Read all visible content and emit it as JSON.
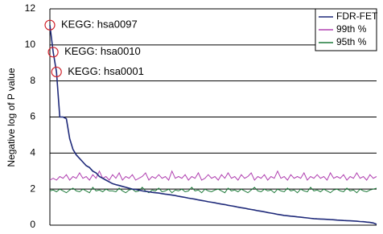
{
  "chart_data": {
    "type": "line",
    "y_label": "Negative log of P value",
    "ylim": [
      0,
      12
    ],
    "yticks": [
      0,
      2,
      4,
      6,
      8,
      10,
      12
    ],
    "grid": true,
    "legend": "top-right",
    "annotations": [
      {
        "text": "KEGG: hsa0097",
        "series": 0,
        "index": 0
      },
      {
        "text": "KEGG: hsa0010",
        "series": 0,
        "index": 1
      },
      {
        "text": "KEGG: hsa0001",
        "series": 0,
        "index": 2
      }
    ],
    "series": [
      {
        "name": "FDR-FET",
        "color": "#1f2a7a",
        "values": [
          11.1,
          9.6,
          8.5,
          6.0,
          6.0,
          5.9,
          4.8,
          4.2,
          3.9,
          3.7,
          3.5,
          3.3,
          3.2,
          3.0,
          2.9,
          2.7,
          2.6,
          2.5,
          2.4,
          2.3,
          2.25,
          2.2,
          2.15,
          2.1,
          2.05,
          2.0,
          1.98,
          1.95,
          1.9,
          1.88,
          1.85,
          1.82,
          1.8,
          1.78,
          1.75,
          1.72,
          1.7,
          1.67,
          1.64,
          1.6,
          1.57,
          1.54,
          1.5,
          1.47,
          1.44,
          1.4,
          1.37,
          1.34,
          1.3,
          1.27,
          1.24,
          1.2,
          1.17,
          1.14,
          1.1,
          1.07,
          1.04,
          1.0,
          0.97,
          0.94,
          0.9,
          0.87,
          0.84,
          0.8,
          0.77,
          0.74,
          0.7,
          0.67,
          0.64,
          0.6,
          0.57,
          0.54,
          0.52,
          0.5,
          0.48,
          0.46,
          0.44,
          0.42,
          0.4,
          0.38,
          0.36,
          0.35,
          0.34,
          0.33,
          0.32,
          0.31,
          0.3,
          0.28,
          0.27,
          0.26,
          0.25,
          0.24,
          0.23,
          0.22,
          0.2,
          0.19,
          0.17,
          0.15,
          0.12,
          0.05
        ]
      },
      {
        "name": "99th %",
        "color": "#b040b0",
        "values": [
          2.5,
          2.6,
          2.5,
          2.7,
          2.6,
          2.8,
          2.5,
          2.7,
          2.6,
          2.9,
          2.6,
          2.7,
          2.5,
          2.8,
          2.6,
          3.0,
          2.6,
          2.7,
          2.5,
          2.8,
          2.6,
          2.9,
          2.5,
          2.7,
          2.6,
          2.8,
          2.5,
          2.6,
          2.7,
          2.9,
          2.5,
          2.7,
          2.6,
          2.8,
          2.6,
          2.7,
          2.5,
          3.0,
          2.6,
          2.7,
          2.6,
          2.8,
          2.5,
          2.7,
          2.6,
          2.9,
          2.5,
          2.6,
          2.8,
          2.6,
          2.7,
          2.5,
          2.8,
          2.6,
          2.9,
          2.6,
          2.7,
          2.5,
          2.8,
          2.6,
          2.7,
          2.9,
          2.5,
          2.7,
          2.6,
          2.8,
          2.5,
          2.7,
          2.6,
          3.0,
          2.6,
          2.7,
          2.5,
          2.8,
          2.6,
          2.7,
          2.6,
          2.9,
          2.5,
          2.7,
          2.6,
          2.8,
          2.6,
          2.7,
          2.5,
          2.9,
          2.6,
          2.7,
          2.6,
          2.8,
          2.5,
          2.7,
          2.6,
          2.9,
          2.6,
          2.7,
          2.5,
          2.8,
          2.6,
          2.7
        ]
      },
      {
        "name": "95th %",
        "color": "#1e7a3a",
        "values": [
          1.9,
          1.95,
          1.85,
          2.0,
          1.9,
          1.8,
          1.95,
          2.05,
          1.9,
          1.85,
          2.0,
          1.9,
          1.8,
          2.1,
          1.9,
          1.95,
          1.85,
          2.0,
          1.9,
          1.9,
          1.85,
          2.05,
          1.9,
          1.8,
          1.95,
          2.0,
          1.85,
          1.9,
          2.1,
          1.9,
          1.8,
          1.95,
          1.9,
          2.05,
          1.85,
          1.9,
          2.0,
          1.8,
          1.95,
          1.9,
          2.0,
          1.85,
          1.9,
          2.1,
          1.9,
          1.95,
          1.8,
          2.0,
          1.9,
          1.85,
          1.95,
          2.0,
          1.9,
          1.8,
          2.05,
          1.9,
          1.95,
          1.85,
          2.0,
          1.9,
          1.8,
          1.95,
          2.1,
          1.9,
          1.85,
          2.0,
          1.9,
          1.95,
          1.8,
          2.0,
          1.9,
          1.85,
          2.05,
          1.9,
          1.95,
          1.8,
          2.0,
          1.9,
          1.85,
          2.1,
          1.9,
          1.95,
          1.85,
          2.0,
          1.9,
          1.8,
          1.95,
          2.0,
          1.9,
          1.85,
          2.05,
          1.9,
          1.95,
          1.8,
          2.0,
          1.9,
          1.85,
          1.95,
          2.0,
          2.05
        ]
      }
    ]
  }
}
